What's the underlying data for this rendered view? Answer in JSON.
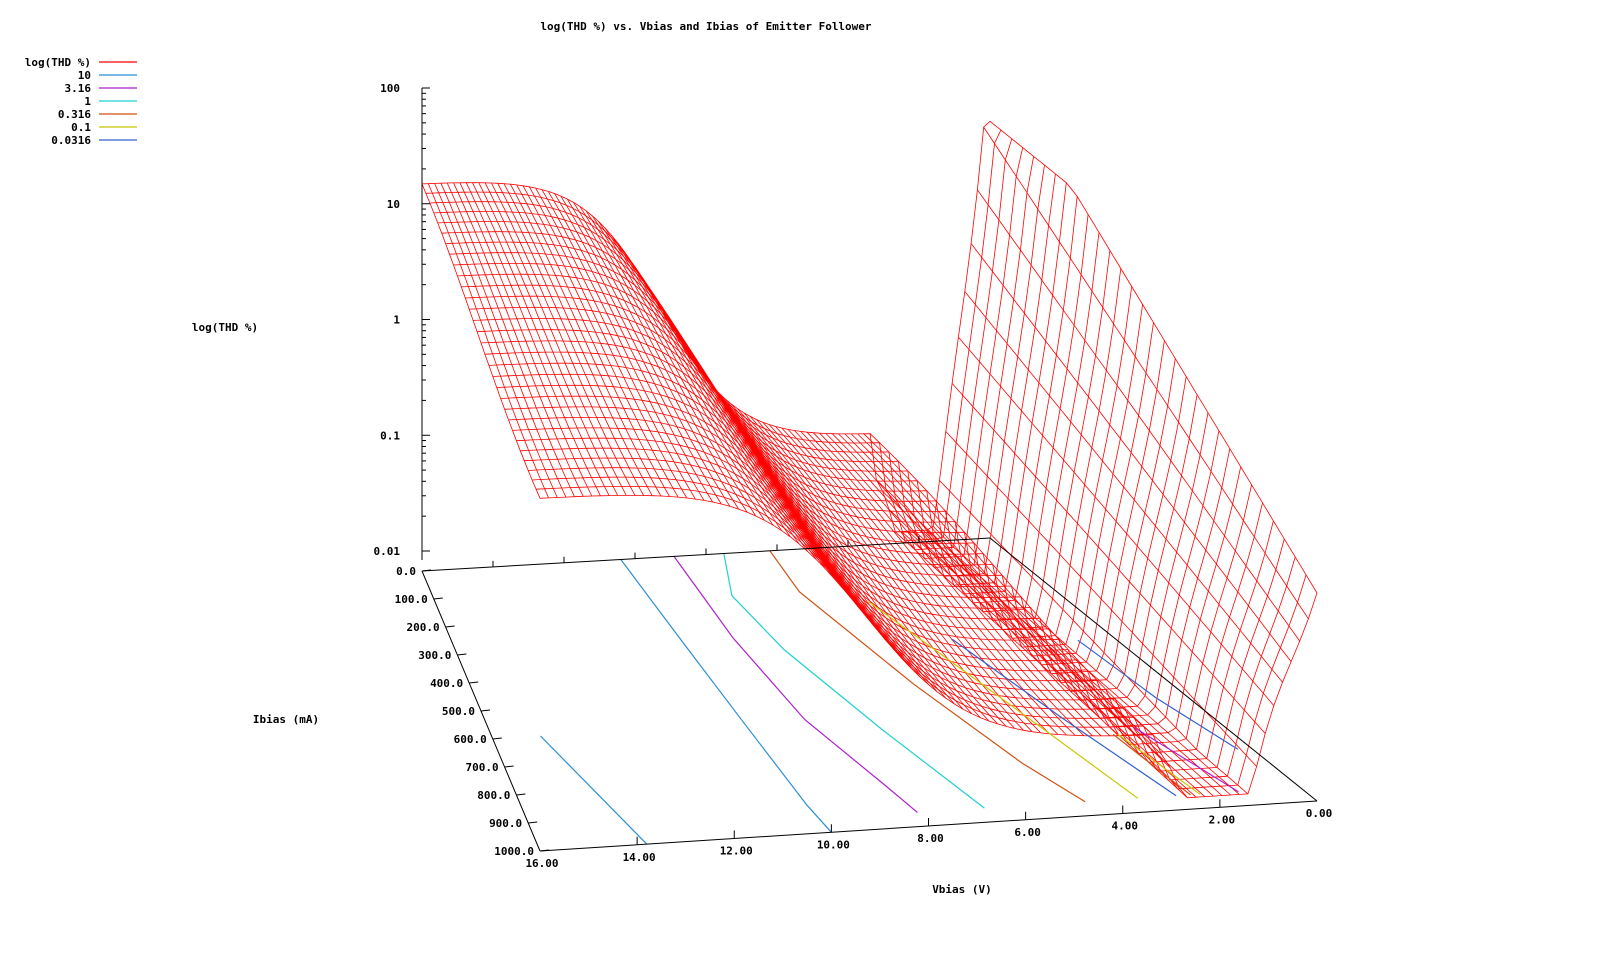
{
  "chart_data": {
    "type": "surface3d",
    "title": "log(THD %) vs. Vbias and Ibias of Emitter Follower",
    "xlabel": "Vbias (V)",
    "ylabel": "Ibias (mA)",
    "zlabel": "log(THD %)",
    "x_ticks": [
      "16.00",
      "14.00",
      "12.00",
      "10.00",
      "8.00",
      "6.00",
      "4.00",
      "2.00",
      "0.00"
    ],
    "y_ticks": [
      "0.0",
      "100.0",
      "200.0",
      "300.0",
      "400.0",
      "500.0",
      "600.0",
      "700.0",
      "800.0",
      "900.0",
      "1000.0"
    ],
    "z_ticks": [
      "100",
      "10",
      "1",
      "0.1",
      "0.01"
    ],
    "xlim": [
      0,
      16
    ],
    "ylim": [
      0,
      1000
    ],
    "zlim": [
      0.01,
      100
    ],
    "zscale": "log",
    "legend": {
      "placement": "top-left",
      "entries": [
        {
          "label": "log(THD %)",
          "color": "#ff0000"
        },
        {
          "label": "10",
          "color": "#2a8fd6"
        },
        {
          "label": "3.16",
          "color": "#b020d0"
        },
        {
          "label": "1",
          "color": "#20d0d0"
        },
        {
          "label": "0.316",
          "color": "#d05010"
        },
        {
          "label": "0.1",
          "color": "#c8c800"
        },
        {
          "label": "0.0316",
          "color": "#3060d0"
        }
      ]
    },
    "contours": [
      {
        "level": "10",
        "color": "#2a8fd6",
        "points": [
          [
            14.9,
            600
          ],
          [
            13.8,
            1000
          ]
        ]
      },
      {
        "level": "10",
        "color": "#2a8fd6",
        "points": [
          [
            10.4,
            0
          ],
          [
            10.3,
            300
          ],
          [
            10.2,
            600
          ],
          [
            10.1,
            900
          ],
          [
            10.0,
            1000
          ]
        ]
      },
      {
        "level": "3.16",
        "color": "#b020d0",
        "points": [
          [
            8.9,
            0
          ],
          [
            9.0,
            300
          ],
          [
            8.8,
            600
          ],
          [
            8.2,
            850
          ],
          [
            8.0,
            950
          ]
        ]
      },
      {
        "level": "1",
        "color": "#20d0d0",
        "points": [
          [
            7.5,
            0
          ],
          [
            8.2,
            150
          ],
          [
            8.0,
            350
          ],
          [
            7.3,
            650
          ],
          [
            6.6,
            950
          ]
        ]
      },
      {
        "level": "0.316",
        "color": "#d05010",
        "points": [
          [
            6.2,
            0
          ],
          [
            6.4,
            150
          ],
          [
            5.7,
            500
          ],
          [
            5.0,
            800
          ],
          [
            4.5,
            950
          ]
        ]
      },
      {
        "level": "0.1",
        "color": "#c8c800",
        "points": [
          [
            4.9,
            200
          ],
          [
            4.2,
            500
          ],
          [
            3.4,
            950
          ]
        ]
      },
      {
        "level": "0.0316",
        "color": "#3060d0",
        "points": [
          [
            3.8,
            350
          ],
          [
            3.2,
            650
          ],
          [
            2.6,
            950
          ]
        ]
      },
      {
        "level": "0.316",
        "color": "#d05010",
        "points": [
          [
            2.5,
            720
          ],
          [
            2.3,
            950
          ]
        ]
      },
      {
        "level": "0.1",
        "color": "#c8c800",
        "points": [
          [
            2.4,
            720
          ],
          [
            2.1,
            950
          ]
        ]
      },
      {
        "level": "3.16",
        "color": "#b020d0",
        "points": [
          [
            1.9,
            700
          ],
          [
            1.3,
            950
          ]
        ]
      },
      {
        "level": "0.0316",
        "color": "#3060d0",
        "points": [
          [
            0.9,
            380
          ],
          [
            0.7,
            600
          ],
          [
            0.3,
            800
          ]
        ]
      }
    ]
  }
}
